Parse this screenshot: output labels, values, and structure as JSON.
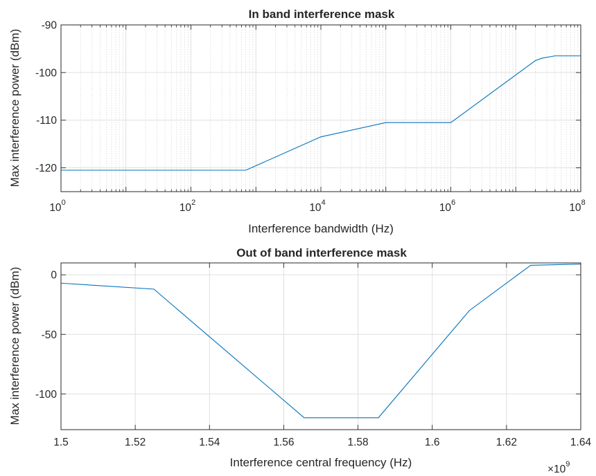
{
  "chart_data": [
    {
      "type": "line",
      "title": "In band interference mask",
      "xlabel": "Interference bandwidth (Hz)",
      "ylabel": "Max interference power (dBm)",
      "xscale": "log",
      "xlim": [
        1,
        100000000
      ],
      "ylim": [
        -125,
        -90
      ],
      "x_ticks": [
        {
          "base": "10",
          "exp": "0",
          "value": 1
        },
        {
          "base": "10",
          "exp": "2",
          "value": 100
        },
        {
          "base": "10",
          "exp": "4",
          "value": 10000
        },
        {
          "base": "10",
          "exp": "6",
          "value": 1000000
        },
        {
          "base": "10",
          "exp": "8",
          "value": 100000000
        }
      ],
      "y_ticks": [
        -90,
        -100,
        -110,
        -120
      ],
      "grid": true,
      "minor_grid": true,
      "color": "#0072BD",
      "series": [
        {
          "x": [
            1,
            700,
            10000,
            100000,
            1000000,
            20000000,
            25000000,
            40000000,
            100000000
          ],
          "y": [
            -120.5,
            -120.5,
            -113.5,
            -110.5,
            -110.5,
            -97.5,
            -97,
            -96.5,
            -96.5
          ]
        }
      ]
    },
    {
      "type": "line",
      "title": "Out of band interference mask",
      "xlabel": "Interference central frequency (Hz)",
      "ylabel": "Max interference power (dBm)",
      "xlim": [
        1.5,
        1.64
      ],
      "ylim": [
        -130,
        10
      ],
      "x_ticks": [
        "1.5",
        "1.52",
        "1.54",
        "1.56",
        "1.58",
        "1.6",
        "1.62",
        "1.64"
      ],
      "x_tick_values": [
        1.5,
        1.52,
        1.54,
        1.56,
        1.58,
        1.6,
        1.62,
        1.64
      ],
      "x_multiplier_base": "×10",
      "x_multiplier_exp": "9",
      "y_ticks": [
        "0",
        "-50",
        "-100"
      ],
      "y_tick_values": [
        0,
        -50,
        -100
      ],
      "grid": true,
      "color": "#0072BD",
      "series": [
        {
          "x": [
            1.5,
            1.525,
            1.5655,
            1.5855,
            1.61,
            1.6265,
            1.64
          ],
          "y": [
            -7,
            -12,
            -120,
            -120,
            -30,
            8,
            9
          ]
        }
      ]
    }
  ]
}
